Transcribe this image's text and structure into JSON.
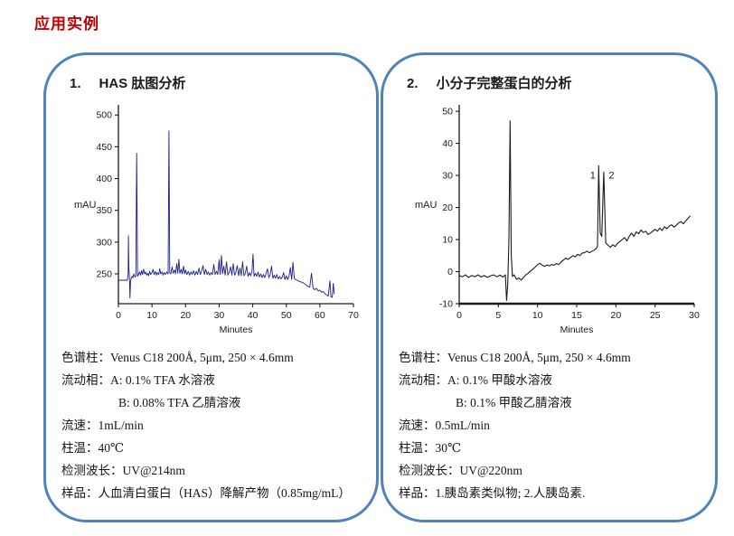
{
  "page_title": "应用实例",
  "colors": {
    "title_red": "#c00000",
    "panel_border_blue": "#4f81bd",
    "trace_navy": "#1c1c8f",
    "trace_black": "#1a1a1a"
  },
  "panels": [
    {
      "number": "1.",
      "title": "HAS 肽图分析",
      "specs": [
        {
          "text": "色谱柱：Venus C18 200Å, 5μm, 250 × 4.6mm",
          "indent": false
        },
        {
          "text": "流动相：A: 0.1% TFA 水溶液",
          "indent": false
        },
        {
          "text": "B: 0.08% TFA 乙腈溶液",
          "indent": true
        },
        {
          "text": "流速：1mL/min",
          "indent": false
        },
        {
          "text": "柱温：40℃",
          "indent": false
        },
        {
          "text": "检测波长：UV@214nm",
          "indent": false
        },
        {
          "text": "样品：人血清白蛋白（HAS）降解产物（0.85mg/mL）",
          "indent": false
        }
      ]
    },
    {
      "number": "2.",
      "title": "小分子完整蛋白的分析",
      "specs": [
        {
          "text": "色谱柱：Venus C18 200Å, 5μm, 250 × 4.6mm",
          "indent": false
        },
        {
          "text": "流动相：A: 0.1% 甲酸水溶液",
          "indent": false
        },
        {
          "text": "B: 0.1% 甲酸乙腈溶液",
          "indent": true
        },
        {
          "text": "流速：0.5mL/min",
          "indent": false
        },
        {
          "text": "柱温：30℃",
          "indent": false
        },
        {
          "text": "检测波长：UV@220nm",
          "indent": false
        },
        {
          "text": "样品：1.胰岛素类似物; 2.人胰岛素.",
          "indent": false
        }
      ]
    }
  ],
  "chart_data": [
    {
      "type": "line",
      "title": "HAS peptide map chromatogram",
      "xlabel": "Minutes",
      "ylabel": "mAU",
      "xlim": [
        0,
        70
      ],
      "ylim": [
        203,
        516
      ],
      "xticks": [
        0,
        10,
        20,
        30,
        40,
        50,
        60,
        70
      ],
      "yticks": [
        250,
        300,
        350,
        400,
        450,
        500
      ],
      "grid": false,
      "legend": "none",
      "line_color": "#1c1c8f",
      "line_width": 0.9,
      "x_axis_width": 1.3,
      "annotations": [],
      "points": [
        [
          0,
          240
        ],
        [
          1,
          240
        ],
        [
          2,
          240
        ],
        [
          2.7,
          240
        ],
        [
          2.9,
          252
        ],
        [
          3.0,
          310
        ],
        [
          3.1,
          262
        ],
        [
          3.3,
          240
        ],
        [
          3.45,
          212
        ],
        [
          3.6,
          238
        ],
        [
          3.8,
          243
        ],
        [
          4.0,
          246
        ],
        [
          4.3,
          244
        ],
        [
          4.6,
          250
        ],
        [
          4.9,
          245
        ],
        [
          5.2,
          247
        ],
        [
          5.45,
          440
        ],
        [
          5.7,
          246
        ],
        [
          6.0,
          249
        ],
        [
          6.3,
          253
        ],
        [
          6.6,
          248
        ],
        [
          6.9,
          255
        ],
        [
          7.2,
          249
        ],
        [
          7.5,
          257
        ],
        [
          7.8,
          250
        ],
        [
          8.1,
          253
        ],
        [
          8.4,
          248
        ],
        [
          8.7,
          251
        ],
        [
          9.0,
          247
        ],
        [
          9.3,
          254
        ],
        [
          9.6,
          249
        ],
        [
          10.0,
          252
        ],
        [
          10.3,
          257
        ],
        [
          10.6,
          249
        ],
        [
          11.0,
          254
        ],
        [
          11.3,
          248
        ],
        [
          11.6,
          252
        ],
        [
          12.0,
          249
        ],
        [
          12.3,
          258
        ],
        [
          12.6,
          250
        ],
        [
          13.0,
          253
        ],
        [
          13.3,
          248
        ],
        [
          13.6,
          252
        ],
        [
          14.0,
          249
        ],
        [
          14.4,
          253
        ],
        [
          14.8,
          250
        ],
        [
          15.05,
          475
        ],
        [
          15.3,
          252
        ],
        [
          15.6,
          250
        ],
        [
          16.0,
          261
        ],
        [
          16.3,
          251
        ],
        [
          16.7,
          256
        ],
        [
          17.0,
          250
        ],
        [
          17.4,
          266
        ],
        [
          17.7,
          251
        ],
        [
          18.0,
          273
        ],
        [
          18.3,
          251
        ],
        [
          18.7,
          257
        ],
        [
          19.0,
          250
        ],
        [
          19.4,
          262
        ],
        [
          19.7,
          250
        ],
        [
          20.0,
          256
        ],
        [
          20.4,
          249
        ],
        [
          20.8,
          254
        ],
        [
          21.2,
          248
        ],
        [
          21.6,
          253
        ],
        [
          22.0,
          249
        ],
        [
          22.4,
          255
        ],
        [
          22.8,
          248
        ],
        [
          23.2,
          254
        ],
        [
          23.6,
          249
        ],
        [
          24.0,
          259
        ],
        [
          24.4,
          249
        ],
        [
          24.8,
          255
        ],
        [
          25.2,
          263
        ],
        [
          25.6,
          249
        ],
        [
          26.0,
          257
        ],
        [
          26.4,
          249
        ],
        [
          26.8,
          253
        ],
        [
          27.2,
          248
        ],
        [
          27.6,
          252
        ],
        [
          28.0,
          249
        ],
        [
          28.4,
          265
        ],
        [
          28.8,
          249
        ],
        [
          29.2,
          254
        ],
        [
          29.6,
          249
        ],
        [
          30.0,
          272
        ],
        [
          30.3,
          249
        ],
        [
          30.7,
          279
        ],
        [
          31.0,
          250
        ],
        [
          31.4,
          262
        ],
        [
          31.8,
          248
        ],
        [
          32.2,
          269
        ],
        [
          32.6,
          248
        ],
        [
          33.0,
          253
        ],
        [
          33.4,
          261
        ],
        [
          33.8,
          248
        ],
        [
          34.2,
          266
        ],
        [
          34.6,
          248
        ],
        [
          35.0,
          253
        ],
        [
          35.4,
          263
        ],
        [
          35.8,
          247
        ],
        [
          36.2,
          259
        ],
        [
          36.6,
          247
        ],
        [
          37.0,
          269
        ],
        [
          37.4,
          247
        ],
        [
          37.8,
          251
        ],
        [
          38.2,
          262
        ],
        [
          38.6,
          246
        ],
        [
          39.0,
          252
        ],
        [
          39.4,
          247
        ],
        [
          39.8,
          254
        ],
        [
          40.1,
          281
        ],
        [
          40.4,
          246
        ],
        [
          40.8,
          251
        ],
        [
          41.2,
          246
        ],
        [
          41.6,
          253
        ],
        [
          42.0,
          245
        ],
        [
          42.4,
          250
        ],
        [
          42.8,
          244
        ],
        [
          43.2,
          249
        ],
        [
          43.6,
          244
        ],
        [
          44.0,
          251
        ],
        [
          44.4,
          258
        ],
        [
          44.8,
          244
        ],
        [
          45.2,
          249
        ],
        [
          45.6,
          262
        ],
        [
          46.0,
          243
        ],
        [
          46.4,
          248
        ],
        [
          46.8,
          243
        ],
        [
          47.2,
          249
        ],
        [
          47.6,
          242
        ],
        [
          48.0,
          246
        ],
        [
          48.4,
          242
        ],
        [
          48.8,
          245
        ],
        [
          49.2,
          252
        ],
        [
          49.6,
          241
        ],
        [
          50.0,
          247
        ],
        [
          50.4,
          241
        ],
        [
          50.8,
          246
        ],
        [
          51.2,
          260
        ],
        [
          51.6,
          241
        ],
        [
          52.0,
          268
        ],
        [
          52.4,
          243
        ],
        [
          52.8,
          241
        ],
        [
          53.2,
          240
        ],
        [
          53.6,
          239
        ],
        [
          54.0,
          238
        ],
        [
          54.5,
          237
        ],
        [
          55.0,
          236
        ],
        [
          55.5,
          234
        ],
        [
          56.0,
          232
        ],
        [
          56.5,
          230
        ],
        [
          57.0,
          229
        ],
        [
          57.5,
          251
        ],
        [
          58.0,
          227
        ],
        [
          58.5,
          225
        ],
        [
          59.0,
          227
        ],
        [
          59.5,
          223
        ],
        [
          60.0,
          224
        ],
        [
          60.5,
          221
        ],
        [
          61.0,
          222
        ],
        [
          61.5,
          219
        ],
        [
          62.0,
          217
        ],
        [
          62.5,
          215
        ],
        [
          63.0,
          239
        ],
        [
          63.3,
          214
        ],
        [
          63.7,
          213
        ],
        [
          64.0,
          235
        ],
        [
          64.3,
          218
        ]
      ]
    },
    {
      "type": "line",
      "title": "Small-molecule intact protein chromatogram",
      "xlabel": "Minutes",
      "ylabel": "mAU",
      "xlim": [
        0,
        30
      ],
      "ylim": [
        -10,
        52
      ],
      "xticks": [
        0,
        5,
        10,
        15,
        20,
        25,
        30
      ],
      "yticks": [
        -10,
        0,
        10,
        20,
        30,
        40,
        50
      ],
      "grid": false,
      "legend": "none",
      "line_color": "#1a1a1a",
      "line_width": 1.1,
      "x_axis_width": 2.6,
      "annotations": [
        {
          "text": "1",
          "x": 17.05,
          "y": 29.0
        },
        {
          "text": "2",
          "x": 19.45,
          "y": 29.0
        }
      ],
      "points": [
        [
          0,
          -1.2
        ],
        [
          0.4,
          -1.6
        ],
        [
          0.8,
          -1.0
        ],
        [
          1.2,
          -1.8
        ],
        [
          1.6,
          -1.2
        ],
        [
          2.0,
          -1.6
        ],
        [
          2.4,
          -1.0
        ],
        [
          2.8,
          -1.7
        ],
        [
          3.2,
          -1.2
        ],
        [
          3.6,
          -1.8
        ],
        [
          4.0,
          -1.3
        ],
        [
          4.4,
          -1.0
        ],
        [
          4.8,
          -1.6
        ],
        [
          5.2,
          -1.1
        ],
        [
          5.6,
          -1.7
        ],
        [
          5.9,
          -1.0
        ],
        [
          6.05,
          -9.0
        ],
        [
          6.2,
          -4.0
        ],
        [
          6.35,
          10.0
        ],
        [
          6.5,
          47.0
        ],
        [
          6.65,
          5.0
        ],
        [
          6.8,
          -1.5
        ],
        [
          7.0,
          -1.0
        ],
        [
          7.3,
          -2.4
        ],
        [
          7.6,
          -2.0
        ],
        [
          7.9,
          -2.6
        ],
        [
          8.2,
          -1.8
        ],
        [
          8.5,
          -1.0
        ],
        [
          8.8,
          -0.5
        ],
        [
          9.1,
          0.2
        ],
        [
          9.4,
          0.8
        ],
        [
          9.7,
          1.4
        ],
        [
          10.0,
          2.2
        ],
        [
          10.3,
          2.6
        ],
        [
          10.6,
          2.0
        ],
        [
          10.9,
          1.6
        ],
        [
          11.2,
          2.1
        ],
        [
          11.5,
          1.8
        ],
        [
          11.8,
          2.2
        ],
        [
          12.1,
          2.0
        ],
        [
          12.4,
          2.5
        ],
        [
          12.7,
          2.2
        ],
        [
          13.0,
          3.0
        ],
        [
          13.3,
          3.6
        ],
        [
          13.6,
          4.2
        ],
        [
          13.9,
          3.8
        ],
        [
          14.2,
          4.4
        ],
        [
          14.5,
          5.0
        ],
        [
          14.8,
          4.6
        ],
        [
          15.1,
          5.4
        ],
        [
          15.4,
          5.0
        ],
        [
          15.7,
          5.8
        ],
        [
          16.0,
          5.9
        ],
        [
          16.3,
          6.4
        ],
        [
          16.6,
          5.9
        ],
        [
          16.9,
          6.3
        ],
        [
          17.2,
          6.7
        ],
        [
          17.5,
          7.2
        ],
        [
          17.65,
          8.0
        ],
        [
          17.8,
          33.0
        ],
        [
          18.0,
          12.0
        ],
        [
          18.2,
          11.0
        ],
        [
          18.45,
          31.0
        ],
        [
          18.7,
          9.0
        ],
        [
          19.0,
          8.2
        ],
        [
          19.3,
          7.6
        ],
        [
          19.6,
          8.4
        ],
        [
          19.9,
          7.8
        ],
        [
          20.2,
          8.8
        ],
        [
          20.5,
          9.4
        ],
        [
          20.8,
          10.0
        ],
        [
          21.1,
          10.6
        ],
        [
          21.4,
          9.6
        ],
        [
          21.7,
          11.0
        ],
        [
          22.0,
          12.0
        ],
        [
          22.3,
          11.0
        ],
        [
          22.6,
          12.4
        ],
        [
          22.9,
          11.8
        ],
        [
          23.2,
          13.0
        ],
        [
          23.5,
          12.2
        ],
        [
          23.8,
          12.6
        ],
        [
          24.1,
          11.6
        ],
        [
          24.4,
          12.0
        ],
        [
          24.7,
          12.6
        ],
        [
          25.0,
          13.2
        ],
        [
          25.3,
          12.6
        ],
        [
          25.6,
          13.6
        ],
        [
          25.9,
          12.8
        ],
        [
          26.2,
          14.0
        ],
        [
          26.5,
          13.4
        ],
        [
          26.8,
          14.2
        ],
        [
          27.1,
          14.6
        ],
        [
          27.4,
          13.9
        ],
        [
          27.7,
          14.4
        ],
        [
          28.0,
          15.2
        ],
        [
          28.3,
          15.6
        ],
        [
          28.6,
          14.9
        ],
        [
          28.9,
          15.8
        ],
        [
          29.2,
          16.6
        ],
        [
          29.5,
          17.4
        ]
      ]
    }
  ]
}
